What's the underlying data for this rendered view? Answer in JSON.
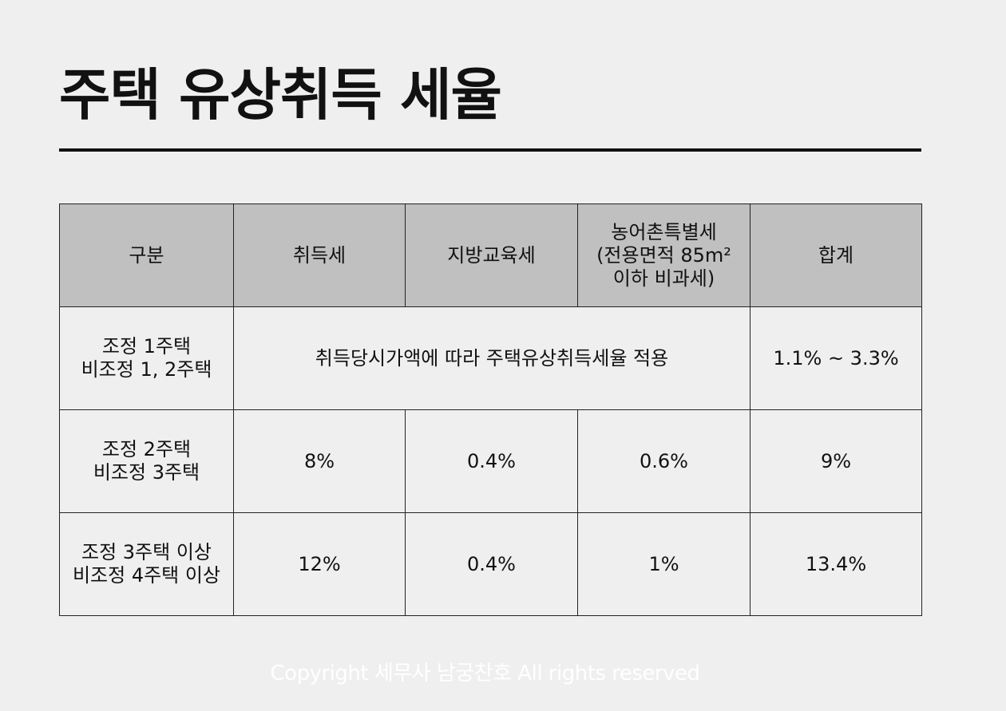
{
  "title": "주택 유상취득 세율",
  "table": {
    "headers": {
      "c1": "구분",
      "c2": "취득세",
      "c3": "지방교육세",
      "c4_l1": "농어촌특별세",
      "c4_l2": "(전용면적 85m²",
      "c4_l3": "이하 비과세)",
      "c5": "합계"
    },
    "rows": [
      {
        "label_l1": "조정 1주택",
        "label_l2": "비조정 1, 2주택",
        "merged": "취득당시가액에 따라 주택유상취득세율 적용",
        "total": "1.1% ~ 3.3%"
      },
      {
        "label_l1": "조정 2주택",
        "label_l2": "비조정 3주택",
        "acq": "8%",
        "edu": "0.4%",
        "rural": "0.6%",
        "total": "9%"
      },
      {
        "label_l1": "조정 3주택 이상",
        "label_l2": "비조정 4주택 이상",
        "acq": "12%",
        "edu": "0.4%",
        "rural": "1%",
        "total": "13.4%"
      }
    ]
  },
  "footer": {
    "copyright": "Copyright 세무사 남궁찬호 All rights reserved"
  },
  "colors": {
    "background": "#efefef",
    "header_fill": "#c0c0c0",
    "text": "#111111",
    "footer_text": "#ffffff"
  }
}
